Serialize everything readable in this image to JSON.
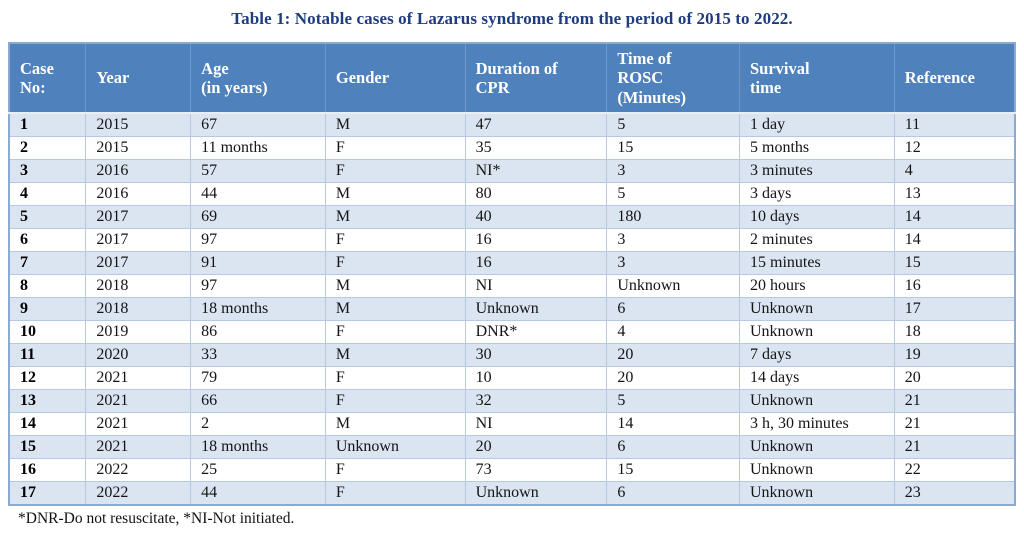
{
  "title": "Table 1: Notable cases of Lazarus syndrome from the period of 2015 to 2022.",
  "table": {
    "columns": [
      "Case\nNo:",
      "Year",
      "Age\n(in years)",
      "Gender",
      "Duration of\nCPR",
      "Time of\nROSC\n(Minutes)",
      "Survival\ntime",
      "Reference"
    ],
    "rows": [
      [
        "1",
        "2015",
        "67",
        "M",
        "47",
        "5",
        "1 day",
        "11"
      ],
      [
        "2",
        "2015",
        "11 months",
        "F",
        "35",
        "15",
        "5 months",
        "12"
      ],
      [
        "3",
        "2016",
        "57",
        "F",
        "NI*",
        "3",
        "3 minutes",
        "4"
      ],
      [
        "4",
        "2016",
        "44",
        "M",
        "80",
        "5",
        "3 days",
        "13"
      ],
      [
        "5",
        "2017",
        "69",
        "M",
        "40",
        "180",
        "10 days",
        "14"
      ],
      [
        "6",
        "2017",
        "97",
        "F",
        "16",
        "3",
        "2 minutes",
        "14"
      ],
      [
        "7",
        "2017",
        "91",
        "F",
        "16",
        "3",
        "15 minutes",
        "15"
      ],
      [
        "8",
        "2018",
        "97",
        "M",
        "NI",
        "Unknown",
        "20 hours",
        "16"
      ],
      [
        "9",
        "2018",
        "18 months",
        "M",
        "Unknown",
        "6",
        "Unknown",
        "17"
      ],
      [
        "10",
        "2019",
        "86",
        "F",
        "DNR*",
        "4",
        "Unknown",
        "18"
      ],
      [
        "11",
        "2020",
        "33",
        "M",
        "30",
        "20",
        "7 days",
        "19"
      ],
      [
        "12",
        "2021",
        "79",
        "F",
        "10",
        "20",
        "14 days",
        "20"
      ],
      [
        "13",
        "2021",
        "66",
        "F",
        "32",
        "5",
        "Unknown",
        "21"
      ],
      [
        "14",
        "2021",
        "2",
        "M",
        "NI",
        "14",
        "3 h, 30 minutes",
        "21"
      ],
      [
        "15",
        "2021",
        "18 months",
        "Unknown",
        "20",
        "6",
        "Unknown",
        "21"
      ],
      [
        "16",
        "2022",
        "25",
        "F",
        "73",
        "15",
        "Unknown",
        "22"
      ],
      [
        "17",
        "2022",
        "44",
        "F",
        "Unknown",
        "6",
        "Unknown",
        "23"
      ]
    ]
  },
  "footnote": "*DNR-Do not resuscitate, *NI-Not initiated.",
  "colors": {
    "title": "#1f3c7f",
    "header_bg": "#4f81bd",
    "header_text": "#ffffff",
    "row_alt_bg": "#dbe5f1",
    "row_bg": "#ffffff",
    "grid_line": "#b7c9e2",
    "outer_border": "#8aaad0"
  }
}
